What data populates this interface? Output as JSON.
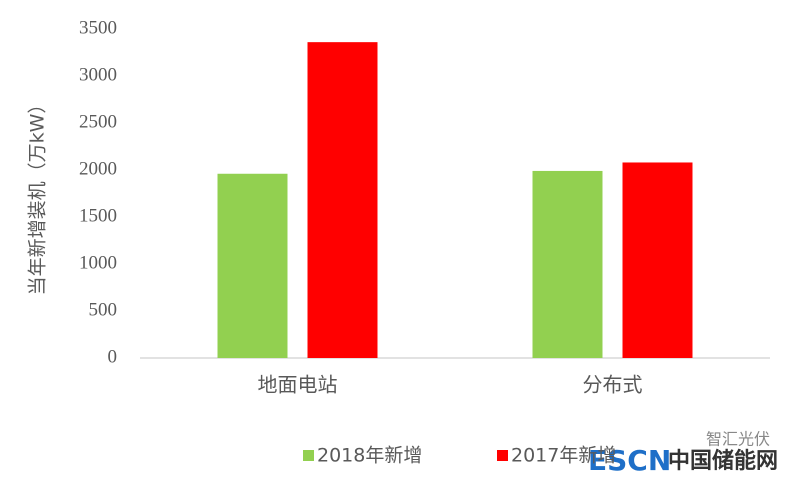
{
  "chart_data": {
    "type": "bar",
    "y_label": "当年新增装机（万kW）",
    "categories": [
      "地面电站",
      "分布式"
    ],
    "series": [
      {
        "name": "2018年新增",
        "color": "#92d050",
        "values": [
          1960,
          1990
        ]
      },
      {
        "name": "2017年新增",
        "color": "#ff0000",
        "values": [
          3360,
          2080
        ]
      }
    ],
    "ylim": [
      0,
      3500
    ],
    "yticks": [
      0,
      500,
      1000,
      1500,
      2000,
      2500,
      3000,
      3500
    ],
    "grid": false,
    "legend": "bottom"
  },
  "watermark": {
    "account": "智汇光伏",
    "logo": "ESCN",
    "site": "中国储能网"
  }
}
